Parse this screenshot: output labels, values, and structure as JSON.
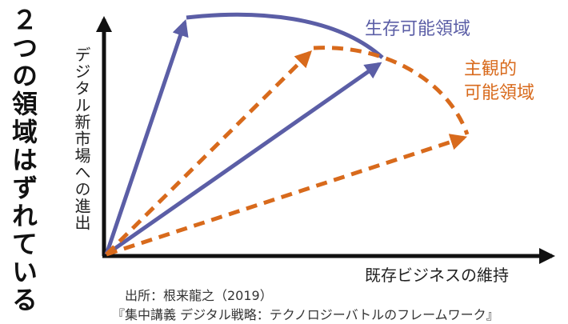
{
  "title": "２つの領域はずれている",
  "axes": {
    "y_label": "デジタル新市場への進出",
    "x_label": "既存ビジネスの維持"
  },
  "regions": {
    "survival": {
      "label": "生存可能領域",
      "color": "#5b5ea6"
    },
    "subjective": {
      "line1": "主観的",
      "line2": "可能領域",
      "color": "#d86a1c"
    }
  },
  "source": {
    "line1": "出所：根来龍之（2019）",
    "line2": "『集中講義 デジタル戦略：テクノロジーバトルのフレームワーク』"
  }
}
